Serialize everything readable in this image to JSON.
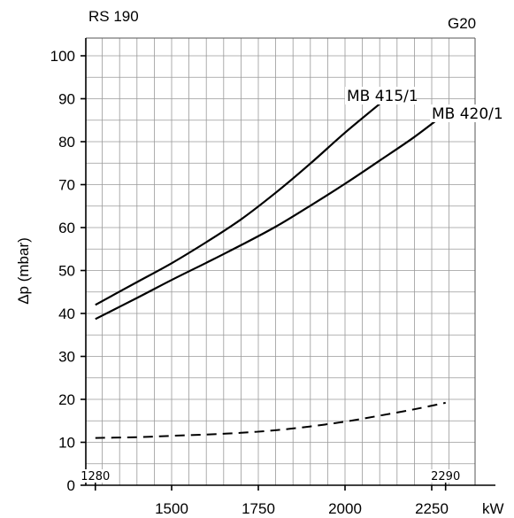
{
  "chart_data": {
    "type": "line",
    "title": "RS 190",
    "gas_label": "G20",
    "xlabel": "kW",
    "ylabel": "Δp (mbar)",
    "xlim": [
      1280,
      2350
    ],
    "ylim": [
      0,
      105
    ],
    "grid": true,
    "x_major_ticks": [
      1500,
      1750,
      2000,
      2250
    ],
    "x_range_labels": [
      1280,
      2290
    ],
    "y_ticks": [
      0,
      10,
      20,
      30,
      40,
      50,
      60,
      70,
      80,
      90,
      100
    ],
    "series": [
      {
        "name": "MB 415/1",
        "style": "solid",
        "x": [
          1280,
          1400,
          1500,
          1600,
          1700,
          1800,
          1900,
          2000,
          2100
        ],
        "y": [
          42,
          47.3,
          51.7,
          56.6,
          61.9,
          68.1,
          74.9,
          82.1,
          88.8
        ]
      },
      {
        "name": "MB 420/1",
        "style": "solid",
        "x": [
          1280,
          1400,
          1500,
          1600,
          1700,
          1800,
          1900,
          2000,
          2100,
          2200,
          2290
        ],
        "y": [
          38.7,
          43.6,
          47.8,
          51.8,
          55.9,
          60.2,
          65.1,
          70.2,
          75.6,
          81.1,
          86.6
        ]
      },
      {
        "name": "",
        "style": "dashed",
        "x": [
          1280,
          1400,
          1500,
          1600,
          1700,
          1800,
          1900,
          2000,
          2100,
          2200,
          2290
        ],
        "y": [
          11,
          11.2,
          11.5,
          11.8,
          12.2,
          12.8,
          13.7,
          14.8,
          16.2,
          17.7,
          19.2
        ]
      }
    ]
  }
}
